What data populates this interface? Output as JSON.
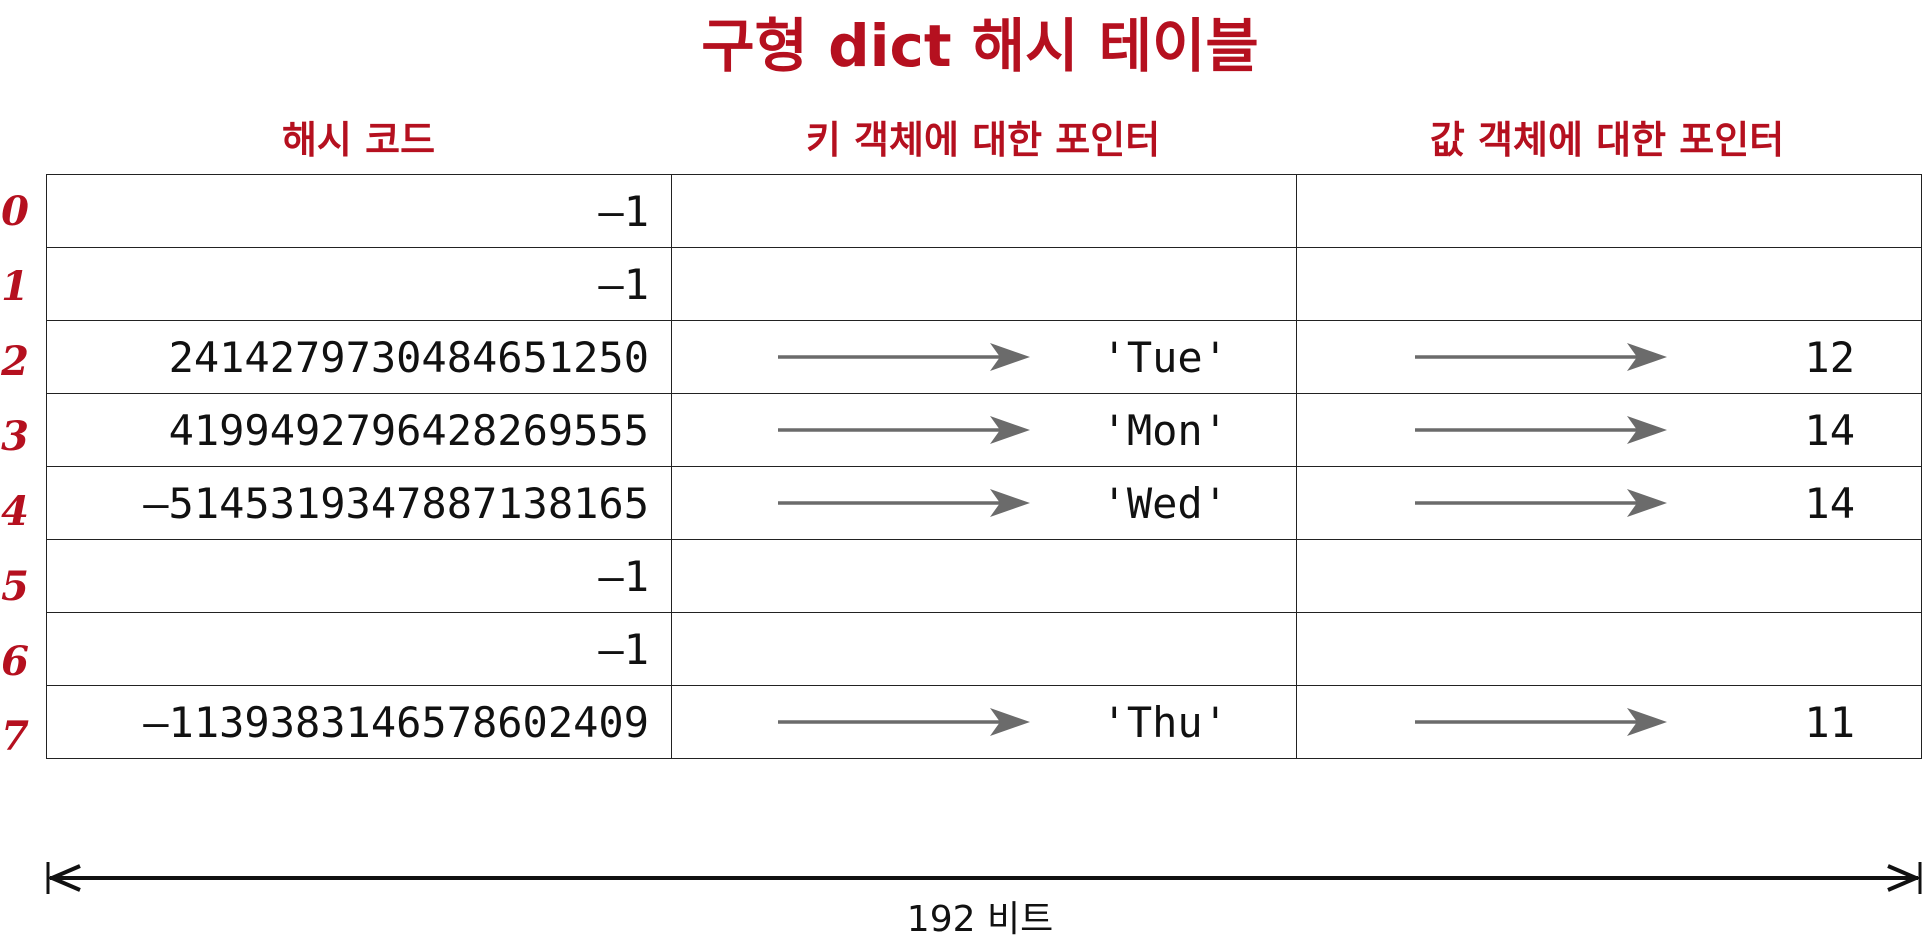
{
  "title": "구형 dict 해시 테이블",
  "headers": {
    "hash": "해시 코드",
    "key": "키 객체에 대한 포인터",
    "value": "값 객체에 대한 포인터"
  },
  "rows": [
    {
      "index": "0",
      "hash": "–1",
      "key": "",
      "value": ""
    },
    {
      "index": "1",
      "hash": "–1",
      "key": "",
      "value": ""
    },
    {
      "index": "2",
      "hash": "2414279730484651250",
      "key": "'Tue'",
      "value": "12"
    },
    {
      "index": "3",
      "hash": "4199492796428269555",
      "key": "'Mon'",
      "value": "14"
    },
    {
      "index": "4",
      "hash": "–5145319347887138165",
      "key": "'Wed'",
      "value": "14"
    },
    {
      "index": "5",
      "hash": "–1",
      "key": "",
      "value": ""
    },
    {
      "index": "6",
      "hash": "–1",
      "key": "",
      "value": ""
    },
    {
      "index": "7",
      "hash": "–1139383146578602409",
      "key": "'Thu'",
      "value": "11"
    }
  ],
  "dimension_label": "192 비트",
  "colors": {
    "accent": "#b5101f",
    "arrow": "#6b6b6b",
    "border": "#222222"
  },
  "icons": {
    "pointer_arrow": "right-arrow-icon",
    "dimension": "double-headed-arrow-icon"
  }
}
